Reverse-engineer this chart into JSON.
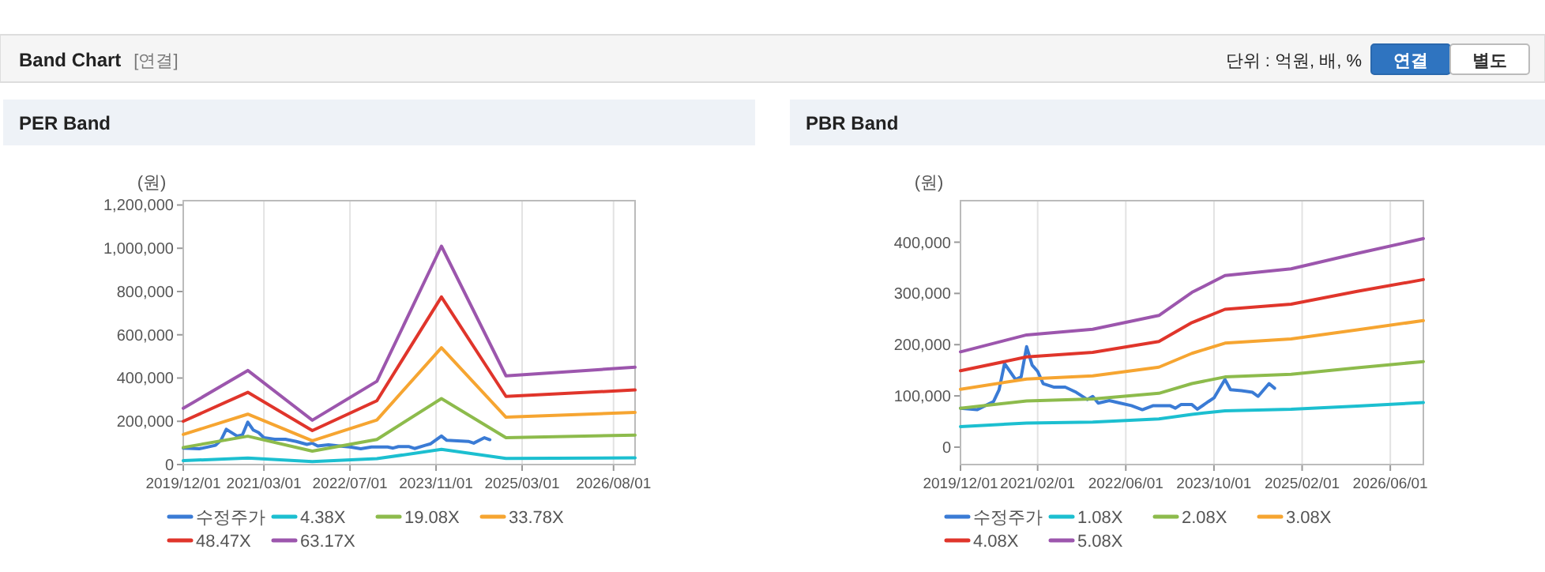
{
  "chart_data": [
    {
      "type": "other",
      "title": "Band Chart",
      "annotations": [
        "[연결]",
        "단위 : 억원, 배, %",
        "연결",
        "별도"
      ]
    },
    {
      "type": "line",
      "title": "PER Band",
      "ylabel": "(원)",
      "legend": "bottom",
      "grid": "x",
      "xlim": [
        "2019-12",
        "2026-12"
      ],
      "xticks": [
        {
          "value": "2019-12",
          "label": "2019/12/01"
        },
        {
          "value": "2021-03",
          "label": "2021/03/01"
        },
        {
          "value": "2022-07",
          "label": "2022/07/01"
        },
        {
          "value": "2023-11",
          "label": "2023/11/01"
        },
        {
          "value": "2025-03",
          "label": "2025/03/01"
        },
        {
          "value": "2026-08",
          "label": "2026/08/01"
        }
      ],
      "ylim": [
        0,
        1220000
      ],
      "yticks": [
        0,
        {
          "value": 200000,
          "label": "200,000"
        },
        {
          "value": 400000,
          "label": "400,000"
        },
        {
          "value": 600000,
          "label": "600,000"
        },
        {
          "value": 800000,
          "label": "800,000"
        },
        {
          "value": 1000000,
          "label": "1,000,000"
        },
        {
          "value": 1200000,
          "label": "1,200,000"
        }
      ],
      "series": [
        {
          "name": "수정주가",
          "color": "#3a7bd5",
          "x": [
            "2019-12",
            "2020-03",
            "2020-06",
            "2020-07",
            "2020-08",
            "2020-10",
            "2020-11",
            "2020-12",
            "2021-01",
            "2021-02",
            "2021-03",
            "2021-05",
            "2021-07",
            "2021-09",
            "2021-11",
            "2021-12",
            "2022-01",
            "2022-03",
            "2022-05",
            "2022-07",
            "2022-09",
            "2022-11",
            "2023-02",
            "2023-03",
            "2023-04",
            "2023-06",
            "2023-07",
            "2023-09",
            "2023-10",
            "2023-12",
            "2024-01",
            "2024-03",
            "2024-05",
            "2024-06",
            "2024-08",
            "2024-09"
          ],
          "values": [
            76000,
            73000,
            89000,
            112000,
            163000,
            132000,
            137000,
            196000,
            160000,
            148000,
            124000,
            117000,
            117000,
            107000,
            93000,
            99000,
            86000,
            91000,
            86000,
            81000,
            73000,
            81000,
            81000,
            76000,
            83000,
            83000,
            74000,
            89000,
            96000,
            132000,
            112000,
            110000,
            107000,
            99000,
            124000,
            115000
          ]
        },
        {
          "name": "4.38X",
          "color": "#1cbfd0",
          "x": [
            "2019-12",
            "2020-12",
            "2021-12",
            "2022-12",
            "2023-12",
            "2024-12",
            "2026-12"
          ],
          "values": [
            18000,
            30000,
            14000,
            27000,
            70000,
            28000,
            31000
          ]
        },
        {
          "name": "19.08X",
          "color": "#8dbb4c",
          "x": [
            "2019-12",
            "2020-12",
            "2021-12",
            "2022-12",
            "2023-12",
            "2024-12",
            "2026-12"
          ],
          "values": [
            79000,
            131000,
            62000,
            116000,
            305000,
            124000,
            136000
          ]
        },
        {
          "name": "33.78X",
          "color": "#f6a531",
          "x": [
            "2019-12",
            "2020-12",
            "2021-12",
            "2022-12",
            "2023-12",
            "2024-12",
            "2026-12"
          ],
          "values": [
            139000,
            233000,
            110000,
            206000,
            540000,
            219000,
            241000
          ]
        },
        {
          "name": "48.47X",
          "color": "#e0352b",
          "x": [
            "2019-12",
            "2020-12",
            "2021-12",
            "2022-12",
            "2023-12",
            "2024-12",
            "2026-12"
          ],
          "values": [
            200000,
            334000,
            157000,
            295000,
            775000,
            315000,
            345000
          ]
        },
        {
          "name": "63.17X",
          "color": "#9c56ad",
          "x": [
            "2019-12",
            "2020-12",
            "2021-12",
            "2022-12",
            "2023-12",
            "2024-12",
            "2026-12"
          ],
          "values": [
            260000,
            435000,
            205000,
            385000,
            1010000,
            410000,
            450000
          ]
        }
      ]
    },
    {
      "type": "line",
      "title": "PBR Band",
      "ylabel": "(원)",
      "legend": "bottom",
      "grid": "x",
      "xlim": [
        "2019-12",
        "2026-12"
      ],
      "xticks": [
        {
          "value": "2019-12",
          "label": "2019/12/01"
        },
        {
          "value": "2021-02",
          "label": "2021/02/01"
        },
        {
          "value": "2022-06",
          "label": "2022/06/01"
        },
        {
          "value": "2023-10",
          "label": "2023/10/01"
        },
        {
          "value": "2025-02",
          "label": "2025/02/01"
        },
        {
          "value": "2026-06",
          "label": "2026/06/01"
        }
      ],
      "ylim": [
        -34000,
        481000
      ],
      "yticks": [
        0,
        {
          "value": 100000,
          "label": "100,000"
        },
        {
          "value": 200000,
          "label": "200,000"
        },
        {
          "value": 300000,
          "label": "300,000"
        },
        {
          "value": 400000,
          "label": "400,000"
        }
      ],
      "series": [
        {
          "name": "수정주가",
          "color": "#3a7bd5",
          "x": [
            "2019-12",
            "2020-03",
            "2020-06",
            "2020-07",
            "2020-08",
            "2020-10",
            "2020-11",
            "2020-12",
            "2021-01",
            "2021-02",
            "2021-03",
            "2021-05",
            "2021-07",
            "2021-09",
            "2021-11",
            "2021-12",
            "2022-01",
            "2022-03",
            "2022-05",
            "2022-07",
            "2022-09",
            "2022-11",
            "2023-02",
            "2023-03",
            "2023-04",
            "2023-06",
            "2023-07",
            "2023-09",
            "2023-10",
            "2023-12",
            "2024-01",
            "2024-03",
            "2024-05",
            "2024-06",
            "2024-08",
            "2024-09"
          ],
          "values": [
            76000,
            73000,
            89000,
            112000,
            163000,
            132000,
            137000,
            196000,
            160000,
            148000,
            124000,
            117000,
            117000,
            107000,
            93000,
            99000,
            86000,
            91000,
            86000,
            81000,
            73000,
            81000,
            81000,
            76000,
            83000,
            83000,
            74000,
            89000,
            96000,
            132000,
            112000,
            110000,
            107000,
            99000,
            124000,
            115000
          ]
        },
        {
          "name": "1.08X",
          "color": "#1cbfd0",
          "x": [
            "2019-12",
            "2020-12",
            "2021-12",
            "2022-12",
            "2023-06",
            "2023-12",
            "2024-12",
            "2025-12",
            "2026-12"
          ],
          "values": [
            40000,
            47000,
            49000,
            55000,
            64000,
            71000,
            74000,
            80000,
            87000
          ]
        },
        {
          "name": "2.08X",
          "color": "#8dbb4c",
          "x": [
            "2019-12",
            "2020-12",
            "2021-12",
            "2022-12",
            "2023-06",
            "2023-12",
            "2024-12",
            "2025-12",
            "2026-12"
          ],
          "values": [
            76000,
            90000,
            94000,
            105000,
            124000,
            137000,
            142000,
            155000,
            167000
          ]
        },
        {
          "name": "3.08X",
          "color": "#f6a531",
          "x": [
            "2019-12",
            "2020-12",
            "2021-12",
            "2022-12",
            "2023-06",
            "2023-12",
            "2024-12",
            "2025-12",
            "2026-12"
          ],
          "values": [
            113000,
            133000,
            139000,
            156000,
            183000,
            203000,
            211000,
            229000,
            247000
          ]
        },
        {
          "name": "4.08X",
          "color": "#e0352b",
          "x": [
            "2019-12",
            "2020-12",
            "2021-12",
            "2022-12",
            "2023-06",
            "2023-12",
            "2024-12",
            "2025-12",
            "2026-12"
          ],
          "values": [
            149000,
            176000,
            185000,
            206000,
            243000,
            269000,
            279000,
            304000,
            327000
          ]
        },
        {
          "name": "5.08X",
          "color": "#9c56ad",
          "x": [
            "2019-12",
            "2020-12",
            "2021-12",
            "2022-12",
            "2023-06",
            "2023-12",
            "2024-12",
            "2025-12",
            "2026-12"
          ],
          "values": [
            186000,
            219000,
            230000,
            257000,
            302000,
            335000,
            348000,
            378000,
            407000
          ]
        }
      ]
    }
  ]
}
